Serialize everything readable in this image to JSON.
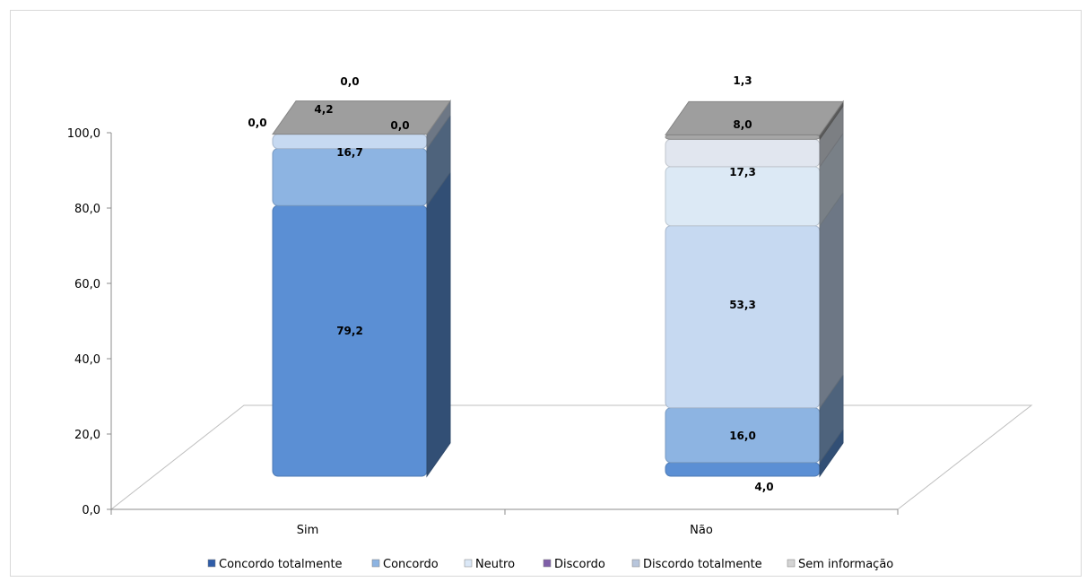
{
  "chart_data": {
    "type": "bar",
    "stacked": true,
    "three_d": true,
    "categories": [
      "Sim",
      "Não"
    ],
    "series": [
      {
        "name": "Concordo totalmente",
        "values": [
          79.2,
          4.0
        ],
        "labels": [
          "79,2",
          "4,0"
        ],
        "color": "#5b8fd4"
      },
      {
        "name": "Concordo",
        "values": [
          16.7,
          16.0
        ],
        "labels": [
          "16,7",
          "16,0"
        ],
        "color": "#8db4e2"
      },
      {
        "name": "Neutro",
        "values": [
          4.2,
          53.3
        ],
        "labels": [
          "4,2",
          "53,3"
        ],
        "color": "#c6d9f1"
      },
      {
        "name": "Discordo",
        "values": [
          0.0,
          17.3
        ],
        "labels": [
          "0,0",
          "17,3"
        ],
        "color": "#dce9f5"
      },
      {
        "name": "Discordo totalmente",
        "values": [
          0.0,
          8.0
        ],
        "labels": [
          "0,0",
          "8,0"
        ],
        "color": "#e1e6ef"
      },
      {
        "name": "Sem informação",
        "values": [
          0.0,
          1.3
        ],
        "labels": [
          "0,0",
          "1,3"
        ],
        "color": "#a6a6a6"
      }
    ],
    "legend_colors": [
      "#2f5da8",
      "#8db4e2",
      "#dbe8f7",
      "#7f5fa8",
      "#b8c6dc",
      "#d4d4d4"
    ],
    "yticks": [
      "0,0",
      "20,0",
      "40,0",
      "60,0",
      "80,0",
      "100,0"
    ],
    "ylim": [
      0,
      100
    ],
    "title": "",
    "xlabel": "",
    "ylabel": "",
    "legend_position": "bottom",
    "grid": false
  }
}
